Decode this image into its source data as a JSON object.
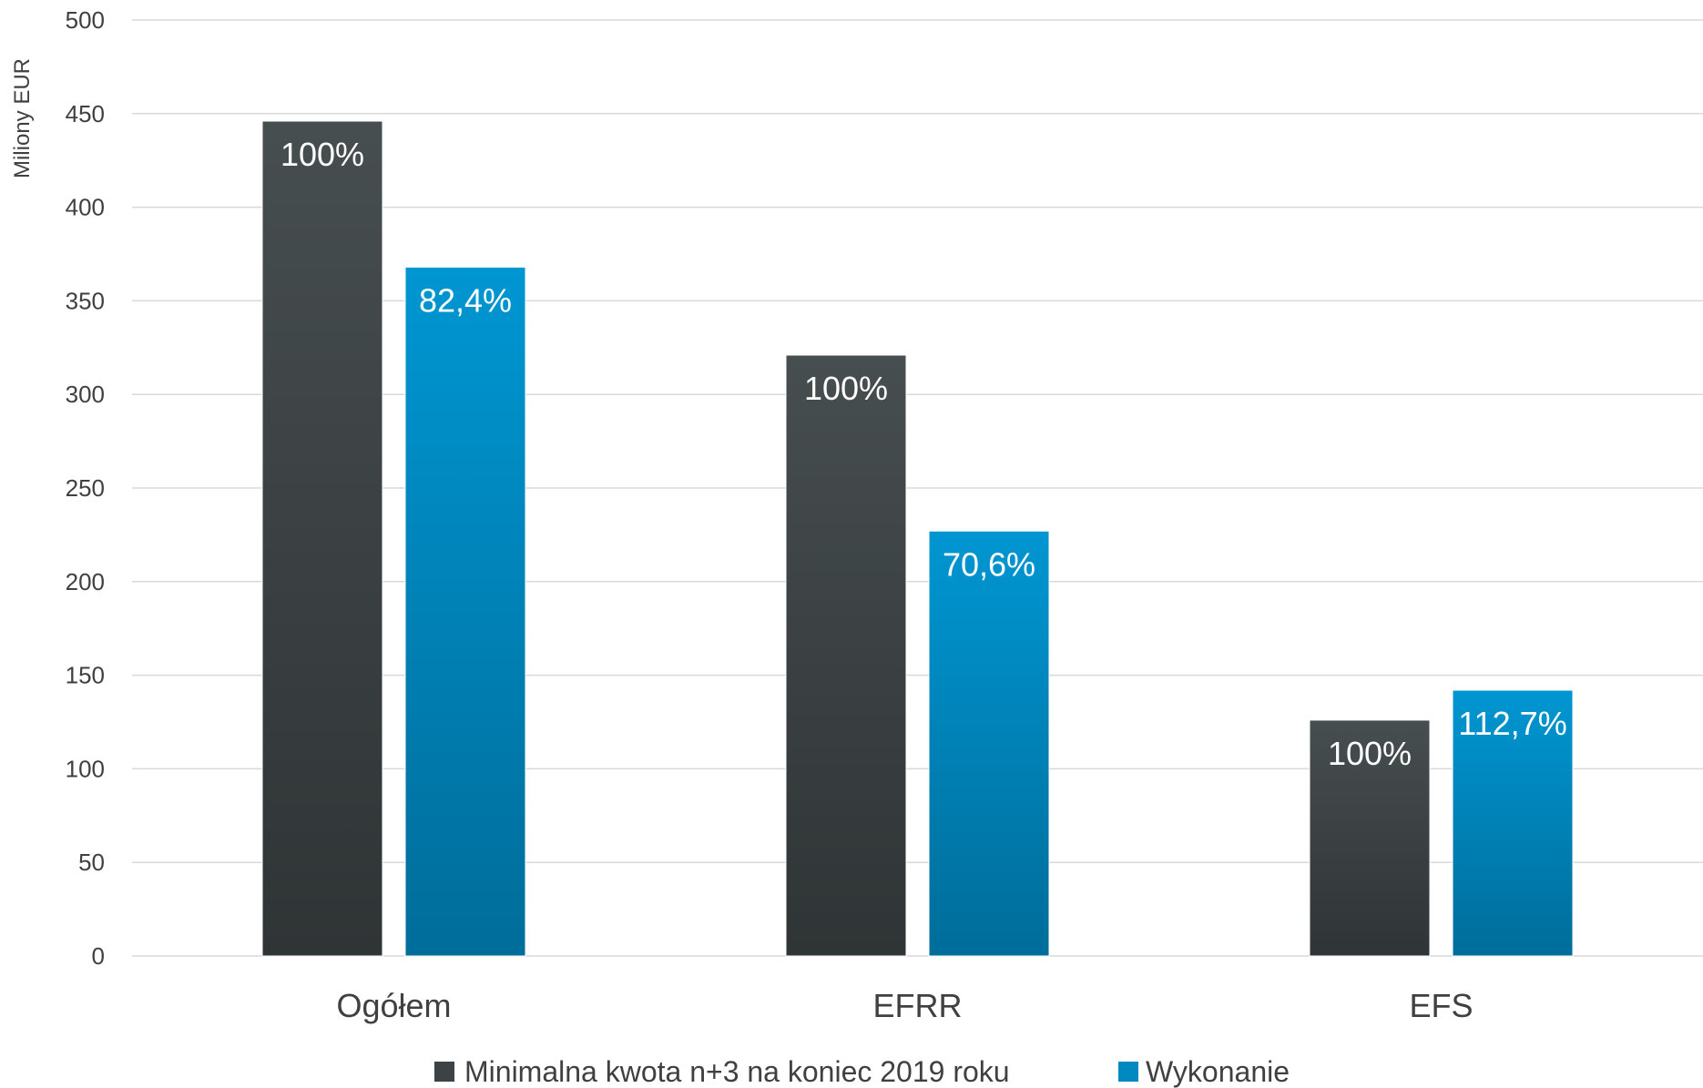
{
  "chart_data": {
    "type": "bar",
    "title": "",
    "xlabel": "",
    "ylabel": "Miliony EUR",
    "ylim": [
      0,
      500
    ],
    "yticks": [
      0,
      50,
      100,
      150,
      200,
      250,
      300,
      350,
      400,
      450,
      500
    ],
    "grid": true,
    "legend_position": "bottom",
    "categories": [
      "Ogółem",
      "EFRR",
      "EFS"
    ],
    "series": [
      {
        "name": "Minimalna kwota n+3 na koniec 2019 roku",
        "color": "#3d4345",
        "color_top": "#474e50",
        "color_bottom": "#2f3435",
        "values": [
          446,
          321,
          126
        ],
        "labels": [
          "100%",
          "100%",
          "100%"
        ]
      },
      {
        "name": "Wykonanie",
        "color": "#0089c0",
        "color_top": "#0096d2",
        "color_bottom": "#006d9a",
        "values": [
          368,
          227,
          142
        ],
        "labels": [
          "82,4%",
          "70,6%",
          "112,7%"
        ]
      }
    ]
  }
}
